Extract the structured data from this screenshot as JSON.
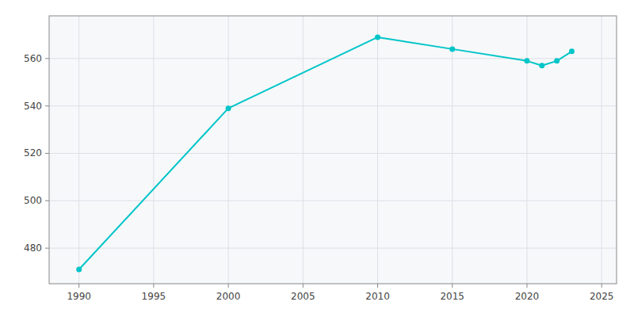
{
  "chart_data": {
    "type": "line",
    "x": [
      1990,
      2000,
      2010,
      2015,
      2020,
      2021,
      2022,
      2023
    ],
    "values": [
      471,
      539,
      569,
      564,
      559,
      557,
      559,
      563
    ],
    "color": "#00C5C8",
    "marker": "circle",
    "xlim": [
      1988,
      2026
    ],
    "ylim": [
      465,
      578
    ],
    "xticks": [
      1990,
      1995,
      2000,
      2005,
      2010,
      2015,
      2020,
      2025
    ],
    "yticks": [
      480,
      500,
      520,
      540,
      560
    ],
    "grid": true
  }
}
